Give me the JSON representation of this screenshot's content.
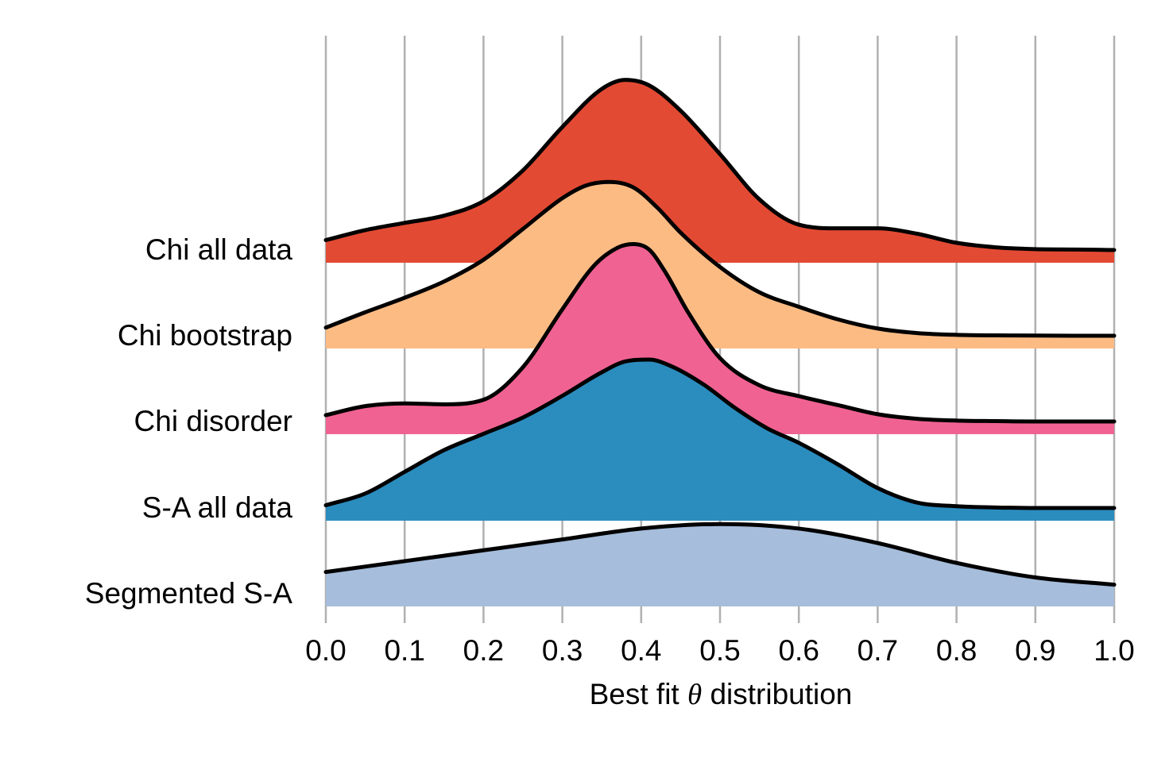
{
  "chart_data": {
    "type": "ridgeline",
    "title": "",
    "xlabel": {
      "prefix": "Best fit ",
      "symbol": "θ",
      "suffix": " distribution"
    },
    "xlim": [
      0.0,
      1.0
    ],
    "x_ticks": [
      "0.0",
      "0.1",
      "0.2",
      "0.3",
      "0.4",
      "0.5",
      "0.6",
      "0.7",
      "0.8",
      "0.9",
      "1.0"
    ],
    "grid": {
      "vertical": true,
      "color": "#b0b0b0"
    },
    "series": [
      {
        "name": "Chi all data",
        "color": "#e34a33",
        "x": [
          0.0,
          0.05,
          0.1,
          0.15,
          0.2,
          0.25,
          0.3,
          0.35,
          0.38,
          0.41,
          0.45,
          0.5,
          0.55,
          0.6,
          0.65,
          0.7,
          0.75,
          0.8,
          0.85,
          0.9,
          0.95,
          1.0
        ],
        "density": [
          0.055,
          0.11,
          0.15,
          0.19,
          0.27,
          0.44,
          0.68,
          0.89,
          0.94,
          0.91,
          0.77,
          0.53,
          0.28,
          0.14,
          0.12,
          0.12,
          0.09,
          0.04,
          0.015,
          0.005,
          0.003,
          0.0
        ]
      },
      {
        "name": "Chi bootstrap",
        "color": "#fdbb84",
        "x": [
          0.0,
          0.05,
          0.1,
          0.15,
          0.2,
          0.25,
          0.3,
          0.33,
          0.36,
          0.39,
          0.42,
          0.45,
          0.5,
          0.55,
          0.6,
          0.65,
          0.7,
          0.75,
          0.8,
          0.85,
          0.9,
          0.95,
          1.0
        ],
        "density": [
          0.045,
          0.13,
          0.21,
          0.3,
          0.42,
          0.59,
          0.76,
          0.83,
          0.85,
          0.82,
          0.71,
          0.57,
          0.38,
          0.24,
          0.16,
          0.09,
          0.04,
          0.015,
          0.005,
          0.002,
          0.001,
          0.0,
          0.0
        ]
      },
      {
        "name": "Chi disorder",
        "color": "#f06292",
        "x": [
          0.0,
          0.05,
          0.1,
          0.15,
          0.2,
          0.25,
          0.3,
          0.34,
          0.37,
          0.39,
          0.41,
          0.43,
          0.46,
          0.5,
          0.55,
          0.6,
          0.65,
          0.7,
          0.75,
          0.8,
          0.85,
          0.9,
          0.95,
          1.0
        ],
        "density": [
          0.035,
          0.085,
          0.1,
          0.095,
          0.12,
          0.3,
          0.62,
          0.86,
          0.96,
          0.98,
          0.95,
          0.83,
          0.6,
          0.35,
          0.2,
          0.14,
          0.09,
          0.04,
          0.015,
          0.005,
          0.002,
          0.0,
          0.0,
          0.0
        ]
      },
      {
        "name": "S-A all data",
        "color": "#2b8cbe",
        "x": [
          0.0,
          0.05,
          0.1,
          0.15,
          0.2,
          0.25,
          0.3,
          0.35,
          0.38,
          0.41,
          0.44,
          0.48,
          0.52,
          0.56,
          0.6,
          0.65,
          0.7,
          0.75,
          0.8,
          0.85,
          0.9,
          0.95,
          1.0
        ],
        "density": [
          0.015,
          0.08,
          0.2,
          0.32,
          0.41,
          0.5,
          0.62,
          0.75,
          0.81,
          0.82,
          0.78,
          0.68,
          0.55,
          0.44,
          0.36,
          0.24,
          0.11,
          0.03,
          0.01,
          0.003,
          0.0,
          0.0,
          0.0
        ]
      },
      {
        "name": "Segmented S-A",
        "color": "#a6bddb",
        "x": [
          0.0,
          0.1,
          0.2,
          0.3,
          0.4,
          0.5,
          0.6,
          0.7,
          0.8,
          0.9,
          1.0
        ],
        "density": [
          0.12,
          0.18,
          0.24,
          0.3,
          0.36,
          0.385,
          0.36,
          0.28,
          0.17,
          0.09,
          0.05
        ]
      }
    ]
  }
}
